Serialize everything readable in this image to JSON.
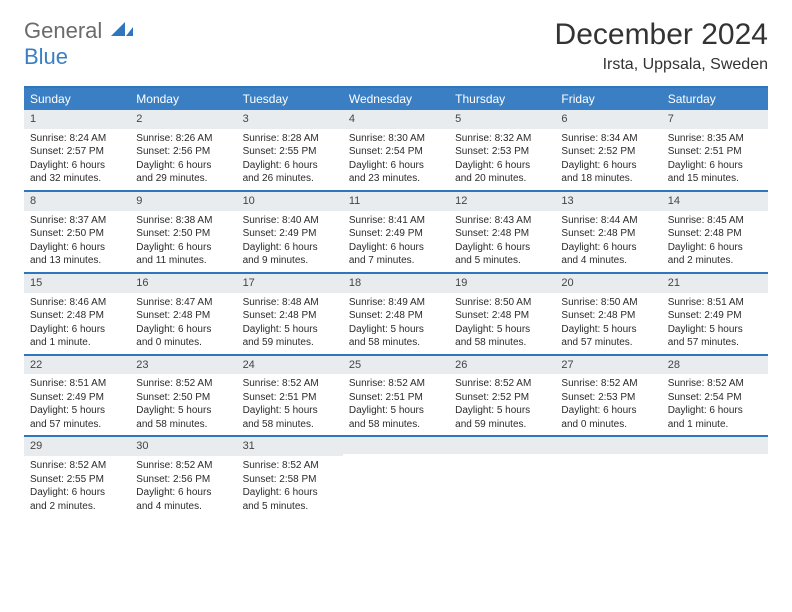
{
  "brand": {
    "part1": "General",
    "part2": "Blue"
  },
  "title": "December 2024",
  "location": "Irsta, Uppsala, Sweden",
  "colors": {
    "header_bg": "#3a7fc4",
    "rule": "#2e77bd",
    "daynum_bg": "#e9ecef",
    "text": "#2b2b2b",
    "brand_gray": "#6b6b6b",
    "brand_blue": "#3a7fc4"
  },
  "weekdays": [
    "Sunday",
    "Monday",
    "Tuesday",
    "Wednesday",
    "Thursday",
    "Friday",
    "Saturday"
  ],
  "weeks": [
    [
      {
        "n": "1",
        "sr": "Sunrise: 8:24 AM",
        "ss": "Sunset: 2:57 PM",
        "dl": "Daylight: 6 hours and 32 minutes."
      },
      {
        "n": "2",
        "sr": "Sunrise: 8:26 AM",
        "ss": "Sunset: 2:56 PM",
        "dl": "Daylight: 6 hours and 29 minutes."
      },
      {
        "n": "3",
        "sr": "Sunrise: 8:28 AM",
        "ss": "Sunset: 2:55 PM",
        "dl": "Daylight: 6 hours and 26 minutes."
      },
      {
        "n": "4",
        "sr": "Sunrise: 8:30 AM",
        "ss": "Sunset: 2:54 PM",
        "dl": "Daylight: 6 hours and 23 minutes."
      },
      {
        "n": "5",
        "sr": "Sunrise: 8:32 AM",
        "ss": "Sunset: 2:53 PM",
        "dl": "Daylight: 6 hours and 20 minutes."
      },
      {
        "n": "6",
        "sr": "Sunrise: 8:34 AM",
        "ss": "Sunset: 2:52 PM",
        "dl": "Daylight: 6 hours and 18 minutes."
      },
      {
        "n": "7",
        "sr": "Sunrise: 8:35 AM",
        "ss": "Sunset: 2:51 PM",
        "dl": "Daylight: 6 hours and 15 minutes."
      }
    ],
    [
      {
        "n": "8",
        "sr": "Sunrise: 8:37 AM",
        "ss": "Sunset: 2:50 PM",
        "dl": "Daylight: 6 hours and 13 minutes."
      },
      {
        "n": "9",
        "sr": "Sunrise: 8:38 AM",
        "ss": "Sunset: 2:50 PM",
        "dl": "Daylight: 6 hours and 11 minutes."
      },
      {
        "n": "10",
        "sr": "Sunrise: 8:40 AM",
        "ss": "Sunset: 2:49 PM",
        "dl": "Daylight: 6 hours and 9 minutes."
      },
      {
        "n": "11",
        "sr": "Sunrise: 8:41 AM",
        "ss": "Sunset: 2:49 PM",
        "dl": "Daylight: 6 hours and 7 minutes."
      },
      {
        "n": "12",
        "sr": "Sunrise: 8:43 AM",
        "ss": "Sunset: 2:48 PM",
        "dl": "Daylight: 6 hours and 5 minutes."
      },
      {
        "n": "13",
        "sr": "Sunrise: 8:44 AM",
        "ss": "Sunset: 2:48 PM",
        "dl": "Daylight: 6 hours and 4 minutes."
      },
      {
        "n": "14",
        "sr": "Sunrise: 8:45 AM",
        "ss": "Sunset: 2:48 PM",
        "dl": "Daylight: 6 hours and 2 minutes."
      }
    ],
    [
      {
        "n": "15",
        "sr": "Sunrise: 8:46 AM",
        "ss": "Sunset: 2:48 PM",
        "dl": "Daylight: 6 hours and 1 minute."
      },
      {
        "n": "16",
        "sr": "Sunrise: 8:47 AM",
        "ss": "Sunset: 2:48 PM",
        "dl": "Daylight: 6 hours and 0 minutes."
      },
      {
        "n": "17",
        "sr": "Sunrise: 8:48 AM",
        "ss": "Sunset: 2:48 PM",
        "dl": "Daylight: 5 hours and 59 minutes."
      },
      {
        "n": "18",
        "sr": "Sunrise: 8:49 AM",
        "ss": "Sunset: 2:48 PM",
        "dl": "Daylight: 5 hours and 58 minutes."
      },
      {
        "n": "19",
        "sr": "Sunrise: 8:50 AM",
        "ss": "Sunset: 2:48 PM",
        "dl": "Daylight: 5 hours and 58 minutes."
      },
      {
        "n": "20",
        "sr": "Sunrise: 8:50 AM",
        "ss": "Sunset: 2:48 PM",
        "dl": "Daylight: 5 hours and 57 minutes."
      },
      {
        "n": "21",
        "sr": "Sunrise: 8:51 AM",
        "ss": "Sunset: 2:49 PM",
        "dl": "Daylight: 5 hours and 57 minutes."
      }
    ],
    [
      {
        "n": "22",
        "sr": "Sunrise: 8:51 AM",
        "ss": "Sunset: 2:49 PM",
        "dl": "Daylight: 5 hours and 57 minutes."
      },
      {
        "n": "23",
        "sr": "Sunrise: 8:52 AM",
        "ss": "Sunset: 2:50 PM",
        "dl": "Daylight: 5 hours and 58 minutes."
      },
      {
        "n": "24",
        "sr": "Sunrise: 8:52 AM",
        "ss": "Sunset: 2:51 PM",
        "dl": "Daylight: 5 hours and 58 minutes."
      },
      {
        "n": "25",
        "sr": "Sunrise: 8:52 AM",
        "ss": "Sunset: 2:51 PM",
        "dl": "Daylight: 5 hours and 58 minutes."
      },
      {
        "n": "26",
        "sr": "Sunrise: 8:52 AM",
        "ss": "Sunset: 2:52 PM",
        "dl": "Daylight: 5 hours and 59 minutes."
      },
      {
        "n": "27",
        "sr": "Sunrise: 8:52 AM",
        "ss": "Sunset: 2:53 PM",
        "dl": "Daylight: 6 hours and 0 minutes."
      },
      {
        "n": "28",
        "sr": "Sunrise: 8:52 AM",
        "ss": "Sunset: 2:54 PM",
        "dl": "Daylight: 6 hours and 1 minute."
      }
    ],
    [
      {
        "n": "29",
        "sr": "Sunrise: 8:52 AM",
        "ss": "Sunset: 2:55 PM",
        "dl": "Daylight: 6 hours and 2 minutes."
      },
      {
        "n": "30",
        "sr": "Sunrise: 8:52 AM",
        "ss": "Sunset: 2:56 PM",
        "dl": "Daylight: 6 hours and 4 minutes."
      },
      {
        "n": "31",
        "sr": "Sunrise: 8:52 AM",
        "ss": "Sunset: 2:58 PM",
        "dl": "Daylight: 6 hours and 5 minutes."
      },
      {
        "empty": true
      },
      {
        "empty": true
      },
      {
        "empty": true
      },
      {
        "empty": true
      }
    ]
  ]
}
